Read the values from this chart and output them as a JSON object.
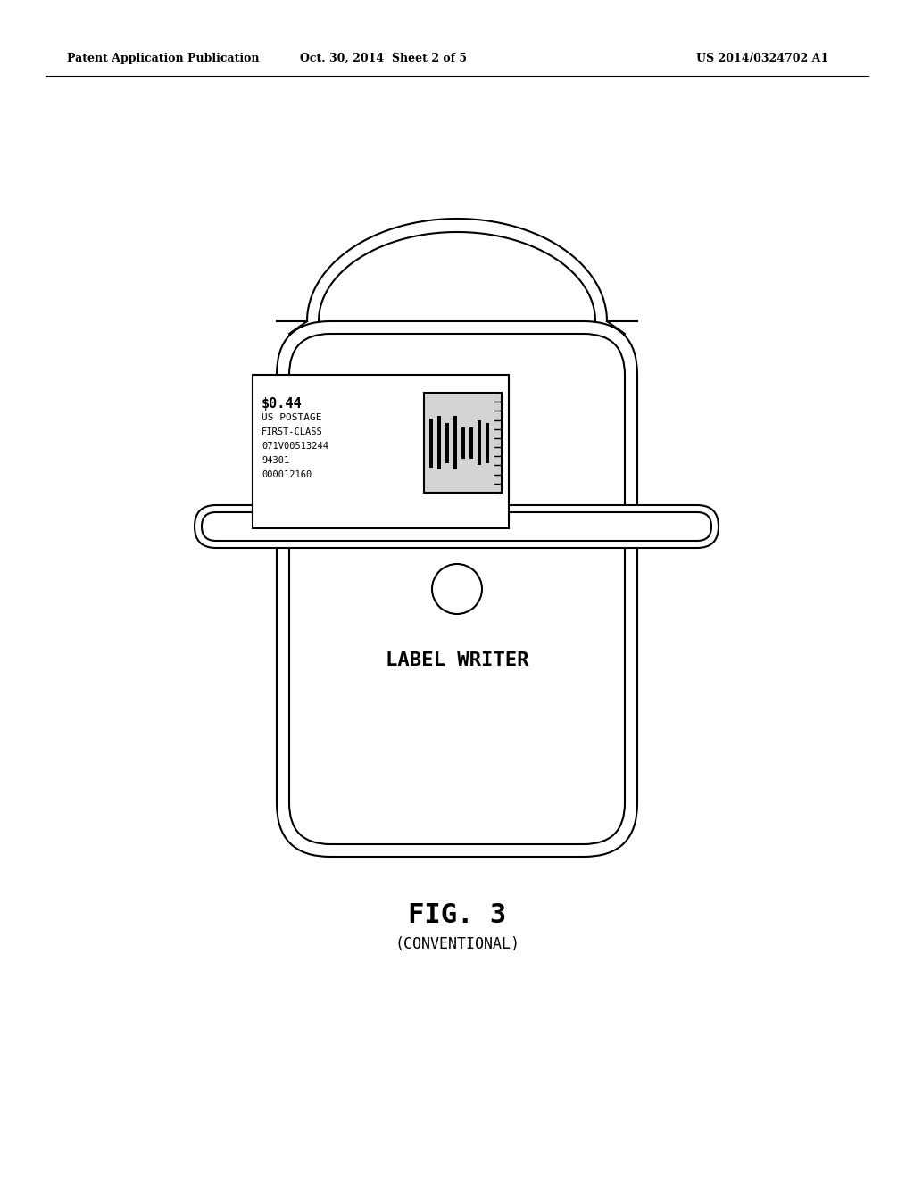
{
  "bg_color": "#ffffff",
  "line_color": "#000000",
  "header_left": "Patent Application Publication",
  "header_mid": "Oct. 30, 2014  Sheet 2 of 5",
  "header_right": "US 2014/0324702 A1",
  "fig_label": "FIG. 3",
  "fig_sublabel": "(CONVENTIONAL)",
  "device_label": "LABEL WRITER",
  "stamp_line1": "$0.44",
  "stamp_line2": "US POSTAGE",
  "stamp_line3": "FIRST-CLASS",
  "stamp_line4": "071V00513244",
  "stamp_line5": "94301",
  "stamp_line6": "000012160"
}
